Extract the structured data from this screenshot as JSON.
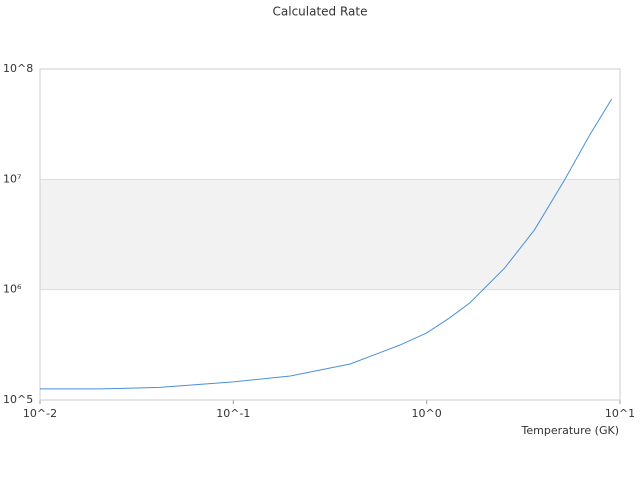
{
  "chart_data": {
    "type": "line",
    "title": "Calculated Rate",
    "x_label": "Temperature (GK)",
    "log_x": true,
    "log_y": true,
    "x": [
      0.01,
      0.0204,
      0.0417,
      0.1,
      0.197,
      0.402,
      0.728,
      1.0,
      1.31,
      1.67,
      2.53,
      3.61,
      5.17,
      6.97,
      9.06
    ],
    "series": [
      {
        "color": "#4a90d9",
        "values": [
          126000,
          126000,
          130000,
          146000,
          165000,
          212000,
          315000,
          405000,
          553000,
          757000,
          1570000,
          3480000,
          9880000,
          25200000,
          53500000
        ]
      }
    ],
    "xlim": [
      0.01,
      10
    ],
    "ylim": [
      100000,
      100000000
    ],
    "xticks": [
      {
        "value": 0.01,
        "label": "10^-2"
      },
      {
        "value": 0.1,
        "label": "10^-1"
      },
      {
        "value": 1,
        "label": "10^0"
      },
      {
        "value": 10,
        "label": "10^1"
      }
    ],
    "yticks": [
      {
        "value": 100000,
        "label": "10^5"
      },
      {
        "value": 1000000,
        "label": "10⁶"
      },
      {
        "value": 10000000,
        "label": "10⁷"
      },
      {
        "value": 100000000,
        "label": "10^8"
      }
    ],
    "band_color": "#f2f2f2"
  }
}
